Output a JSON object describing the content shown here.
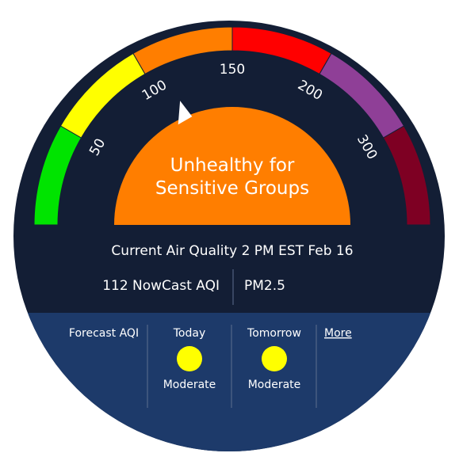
{
  "gauge": {
    "segments": [
      {
        "name": "good",
        "color": "#00e400"
      },
      {
        "name": "moderate",
        "color": "#ffff00"
      },
      {
        "name": "usg",
        "color": "#ff7e00"
      },
      {
        "name": "unhealthy",
        "color": "#ff0000"
      },
      {
        "name": "very-unhealthy",
        "color": "#8f3f97"
      },
      {
        "name": "hazardous",
        "color": "#7e0023"
      }
    ],
    "tick_labels": [
      "50",
      "100",
      "150",
      "200",
      "300"
    ],
    "current_value": 112,
    "category_line1": "Unhealthy for",
    "category_line2": "Sensitive Groups",
    "category_color": "#ff7e00"
  },
  "current": {
    "heading": "Current Air Quality 2 PM EST Feb 16",
    "aqi_text": "112 NowCast AQI",
    "pollutant": "PM2.5"
  },
  "forecast": {
    "label": "Forecast AQI",
    "days": [
      {
        "day": "Today",
        "category": "Moderate",
        "color": "#ffff00"
      },
      {
        "day": "Tomorrow",
        "category": "Moderate",
        "color": "#ffff00"
      }
    ],
    "more_label": "More"
  },
  "colors": {
    "panel_top": "#131e35",
    "panel_bottom": "#1d3a6a",
    "divider": "#5d6e8e"
  }
}
